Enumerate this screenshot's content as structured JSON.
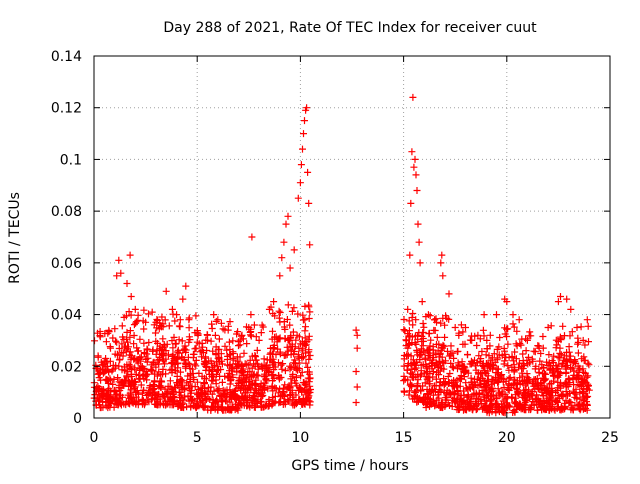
{
  "chart_data": {
    "type": "scatter",
    "title": "Day 288 of 2021, Rate Of TEC Index for receiver cuut",
    "xlabel": "GPS time / hours",
    "ylabel": "ROTI / TECUs",
    "xlim": [
      0,
      25
    ],
    "ylim": [
      0,
      0.14
    ],
    "xticks": [
      0,
      5,
      10,
      15,
      20,
      25
    ],
    "xtick_labels": [
      "0",
      "5",
      "10",
      "15",
      "20",
      "25"
    ],
    "yticks": [
      0,
      0.02,
      0.04,
      0.06,
      0.08,
      0.1,
      0.12,
      0.14
    ],
    "ytick_labels": [
      "0",
      "0.02",
      "0.04",
      "0.06",
      "0.08",
      "0.1",
      "0.12",
      "0.14"
    ],
    "grid": true,
    "marker": "+",
    "marker_color": "#ff0000",
    "series": [
      {
        "points": [
          [
            0.2,
            0.024
          ],
          [
            0.5,
            0.022
          ],
          [
            0.8,
            0.027
          ],
          [
            1.1,
            0.055
          ],
          [
            1.2,
            0.061
          ],
          [
            1.3,
            0.056
          ],
          [
            1.6,
            0.052
          ],
          [
            1.75,
            0.063
          ],
          [
            1.8,
            0.047
          ],
          [
            2.0,
            0.042
          ],
          [
            2.5,
            0.037
          ],
          [
            3.0,
            0.037
          ],
          [
            3.5,
            0.049
          ],
          [
            3.8,
            0.042
          ],
          [
            4.0,
            0.04
          ],
          [
            4.3,
            0.046
          ],
          [
            4.45,
            0.051
          ],
          [
            4.6,
            0.038
          ],
          [
            5.0,
            0.033
          ],
          [
            5.5,
            0.032
          ],
          [
            5.8,
            0.04
          ],
          [
            6.0,
            0.038
          ],
          [
            6.5,
            0.034
          ],
          [
            7.0,
            0.028
          ],
          [
            7.5,
            0.035
          ],
          [
            7.6,
            0.04
          ],
          [
            7.65,
            0.07
          ],
          [
            8.0,
            0.03
          ],
          [
            8.5,
            0.042
          ],
          [
            8.7,
            0.045
          ],
          [
            9.0,
            0.055
          ],
          [
            9.1,
            0.062
          ],
          [
            9.2,
            0.068
          ],
          [
            9.3,
            0.075
          ],
          [
            9.4,
            0.078
          ],
          [
            9.5,
            0.058
          ],
          [
            9.7,
            0.065
          ],
          [
            9.9,
            0.085
          ],
          [
            10.0,
            0.091
          ],
          [
            10.05,
            0.098
          ],
          [
            10.1,
            0.104
          ],
          [
            10.15,
            0.11
          ],
          [
            10.2,
            0.115
          ],
          [
            10.25,
            0.119
          ],
          [
            10.3,
            0.12
          ],
          [
            10.35,
            0.095
          ],
          [
            10.4,
            0.083
          ],
          [
            10.45,
            0.067
          ],
          [
            12.7,
            0.034
          ],
          [
            12.75,
            0.032
          ],
          [
            12.75,
            0.027
          ],
          [
            12.7,
            0.018
          ],
          [
            12.75,
            0.012
          ],
          [
            12.7,
            0.006
          ],
          [
            15.2,
            0.042
          ],
          [
            15.3,
            0.063
          ],
          [
            15.35,
            0.083
          ],
          [
            15.4,
            0.103
          ],
          [
            15.45,
            0.124
          ],
          [
            15.5,
            0.097
          ],
          [
            15.55,
            0.1
          ],
          [
            15.6,
            0.094
          ],
          [
            15.65,
            0.088
          ],
          [
            15.7,
            0.075
          ],
          [
            15.75,
            0.068
          ],
          [
            15.8,
            0.06
          ],
          [
            15.9,
            0.045
          ],
          [
            16.2,
            0.04
          ],
          [
            16.5,
            0.038
          ],
          [
            16.8,
            0.06
          ],
          [
            16.85,
            0.063
          ],
          [
            16.9,
            0.055
          ],
          [
            17.2,
            0.048
          ],
          [
            17.5,
            0.035
          ],
          [
            17.8,
            0.036
          ],
          [
            18.0,
            0.035
          ],
          [
            18.3,
            0.03
          ],
          [
            18.6,
            0.032
          ],
          [
            18.9,
            0.04
          ],
          [
            19.2,
            0.032
          ],
          [
            19.5,
            0.04
          ],
          [
            19.9,
            0.046
          ],
          [
            20.0,
            0.045
          ],
          [
            20.3,
            0.04
          ],
          [
            20.6,
            0.038
          ],
          [
            21.0,
            0.03
          ],
          [
            21.5,
            0.028
          ],
          [
            22.0,
            0.035
          ],
          [
            22.5,
            0.045
          ],
          [
            22.6,
            0.047
          ],
          [
            22.9,
            0.046
          ],
          [
            23.1,
            0.042
          ],
          [
            23.4,
            0.035
          ],
          [
            23.7,
            0.03
          ],
          [
            23.9,
            0.038
          ]
        ],
        "bands": [
          {
            "x": [
              0.0,
              1.0
            ],
            "low": 0.004,
            "high": 0.022
          },
          {
            "x": [
              1.0,
              2.0
            ],
            "low": 0.005,
            "high": 0.03
          },
          {
            "x": [
              2.0,
              4.0
            ],
            "low": 0.005,
            "high": 0.03
          },
          {
            "x": [
              4.0,
              5.5
            ],
            "low": 0.004,
            "high": 0.028
          },
          {
            "x": [
              5.5,
              7.0
            ],
            "low": 0.003,
            "high": 0.026
          },
          {
            "x": [
              7.0,
              8.5
            ],
            "low": 0.004,
            "high": 0.024
          },
          {
            "x": [
              8.5,
              10.5
            ],
            "low": 0.005,
            "high": 0.032
          },
          {
            "x": [
              15.0,
              16.0
            ],
            "low": 0.006,
            "high": 0.033
          },
          {
            "x": [
              16.0,
              17.5
            ],
            "low": 0.004,
            "high": 0.028
          },
          {
            "x": [
              17.5,
              19.0
            ],
            "low": 0.003,
            "high": 0.022
          },
          {
            "x": [
              19.0,
              20.5
            ],
            "low": 0.002,
            "high": 0.025
          },
          {
            "x": [
              20.5,
              22.0
            ],
            "low": 0.003,
            "high": 0.022
          },
          {
            "x": [
              22.0,
              24.0
            ],
            "low": 0.003,
            "high": 0.024
          }
        ]
      }
    ]
  }
}
